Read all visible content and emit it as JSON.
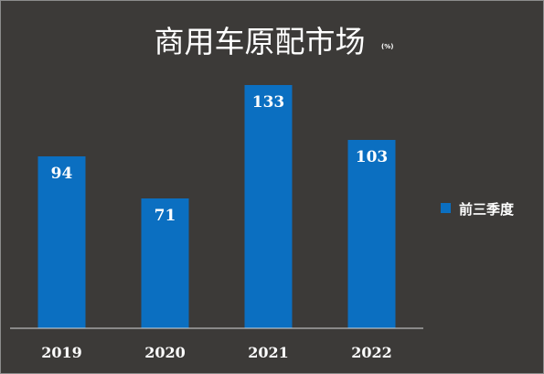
{
  "chart_data": {
    "type": "bar",
    "title": "商用车原配市场",
    "unit": "(%)",
    "categories": [
      "2019",
      "2020",
      "2021",
      "2022"
    ],
    "series": [
      {
        "name": "前三季度",
        "values": [
          94,
          71,
          133,
          103
        ],
        "color": "#0b6fc1"
      }
    ],
    "ylim": [
      0,
      140
    ],
    "grid": false,
    "legend_position": "right",
    "background": "#3c3a38",
    "text_color": "#ffffff",
    "axis_color": "#d8d8d8"
  }
}
